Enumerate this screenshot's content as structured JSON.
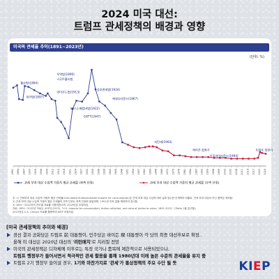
{
  "page": {
    "title_line1": "2024 미국 대선:",
    "title_line2": "트럼프 관세정책의 배경과 영향"
  },
  "chart_data": {
    "type": "line",
    "title": "미국의 관세율 추이(1891~2023년)",
    "unit": "(단위: %)",
    "ylim": [
      0,
      65
    ],
    "years": [
      1891,
      1894,
      1897,
      1900,
      1903,
      1906,
      1909,
      1912,
      1915,
      1918,
      1921,
      1924,
      1927,
      1930,
      1933,
      1936,
      1939,
      1942,
      1945,
      1948,
      1951,
      1954,
      1957,
      1960,
      1963,
      1966,
      1969,
      1972,
      1975,
      1978,
      1981,
      1984,
      1987,
      1990,
      1993,
      1996,
      1999,
      2002,
      2005,
      2008,
      2011,
      2014,
      2017,
      2020,
      2023
    ],
    "series": [
      {
        "name": "관세 부과 대상 수입액 가중치 평균 관세율 (좌측 단위)",
        "color": "#2f3f8f",
        "marker": "square",
        "x": [
          1891,
          1893,
          1894,
          1896,
          1897,
          1899,
          1902,
          1905,
          1908,
          1909,
          1911,
          1913,
          1914,
          1916,
          1918,
          1920,
          1922,
          1924,
          1927,
          1930,
          1932,
          1934,
          1936,
          1939,
          1942,
          1945,
          1948,
          1951,
          1954,
          1957,
          1960,
          1962,
          1964,
          1966,
          1969,
          1972,
          1975,
          1978,
          1981,
          1984,
          1987,
          1990,
          1993,
          1996,
          1999,
          2002,
          2005,
          2008,
          2011,
          2014,
          2017,
          2019,
          2020,
          2021,
          2023
        ],
        "y": [
          48.0,
          49.5,
          41.0,
          40.5,
          49.0,
          48.5,
          46.5,
          44.5,
          43.0,
          44.5,
          41.0,
          40.0,
          29.5,
          27.0,
          23.0,
          17.0,
          35.0,
          40.0,
          39.5,
          44.5,
          59.0,
          47.0,
          39.5,
          37.0,
          32.5,
          28.5,
          14.5,
          13.0,
          11.5,
          11.0,
          11.5,
          12.0,
          12.0,
          11.5,
          9.5,
          9.0,
          6.5,
          6.5,
          6.0,
          5.5,
          5.5,
          5.5,
          5.5,
          5.0,
          5.0,
          5.0,
          4.5,
          4.5,
          4.5,
          4.5,
          4.5,
          5.0,
          8.5,
          8.0,
          7.5
        ]
      },
      {
        "name": "관세 부과 대상 수입액 가중치 평균 관세율 (우측 단위)",
        "color": "#e0142b",
        "marker": "circle",
        "x": [
          1951,
          1954,
          1957,
          1960,
          1962,
          1964,
          1966,
          1969,
          1972,
          1975,
          1978,
          1981,
          1984,
          1987,
          1990,
          1993,
          1996,
          1999,
          2002,
          2005,
          2008,
          2011,
          2014,
          2017,
          2019,
          2020,
          2021,
          2023
        ],
        "y": [
          13.0,
          11.5,
          11.0,
          11.5,
          12.0,
          12.0,
          11.5,
          9.5,
          9.0,
          6.5,
          6.5,
          6.0,
          5.5,
          5.5,
          5.5,
          5.5,
          5.0,
          5.0,
          5.0,
          4.5,
          4.5,
          4.5,
          4.5,
          4.5,
          5.0,
          8.5,
          8.0,
          7.5
        ]
      }
    ],
    "annotations": [
      {
        "label": "월슨법(1894)",
        "x": 1894,
        "y": 49.5
      },
      {
        "label": "딩리법(1897)",
        "x": 1897,
        "y": 41.0
      },
      {
        "label": "우역법(1890)",
        "x": 1913,
        "y": 55.0
      },
      {
        "label": "스무트홀리법",
        "x": 1913,
        "y": 52.0
      },
      {
        "label": "언더우드법(1913)",
        "x": 1913,
        "y": 44.0
      },
      {
        "label": "포드니-매컴버법(1922)",
        "x": 1920,
        "y": 34.0
      },
      {
        "label": "GATT(1947)",
        "x": 1927,
        "y": 29.0
      },
      {
        "label": "상호관세법(1934)",
        "x": 1934,
        "y": 45.5
      },
      {
        "label": "케네디라운드(1967)",
        "x": 1942,
        "y": 40.0
      },
      {
        "label": "지킨세(1964)",
        "x": 1964,
        "y": 13.5
      },
      {
        "label": "레이건 집권기",
        "x": 1984,
        "y": 8.5
      },
      {
        "label": "우루과이라운드(1994)",
        "x": 1993,
        "y": 5.0
      },
      {
        "label": "트럼프 집권기",
        "x": 2017,
        "y": 8.5
      }
    ],
    "legend_position": "bottom"
  },
  "notes": {
    "lines": [
      "주: 1) 관세부과 대상 수입액 가중치 평균 관세율(Calculated duties/dutiable imports for consumption)은 관세 부과 대상 수입액 대비 실제 징수한 관세액의 비율로, 관세 부과 대상이 아닌 품목은 제외됨.",
      "2) 관세 부과 대상 수입액 가중치 평균 관세율의 우측 단위는 좌측 단위와 동일하며, 1951년 이후 값을 확대하여 표시함.",
      "3) 1891~2022년의 연도별 자료를 사용하였으며, 2023년은 추정치임.",
      "자료: 1891~2022년 자료는 USITC(2023), \"U.S. imports for consumption, duties collected, and ratio of duties to value, 1891-2022.\" (Table 1을 참고함).",
      "2023년은 U.S. Census 자료를 활용하여 KIEP 추정치임."
    ]
  },
  "summary": {
    "heading": "[미국 관세정책의 추이와 배경]",
    "b1_a": "경선 결과 공화당은 트럼프 前 대통령이, 민주당은 바이든 現 대통령이 각 당의  최종 대선후보로 확정..",
    "b1_b": "올해 미 대선은 2020년 대선의 ",
    "b1_c": "'리턴매치'",
    "b1_d": "로 치러질 전망",
    "b2_a": "미국의 관세정책은 디자체에 이후로는 특정 국가나 품목에 제한적으로 사용되었으나,",
    "b2_b": "트럼프 행정부가 들어서면서 적극적인 관세 활용을 통해 1980년대 이래 높은 수준의 관세율을 유지 중",
    "b3_a": "트럼프 2기 행정부 들어설 경우, ",
    "b3_b": "1기와 마찬가지로 '관세'가 통상정책의 주요 수단 될 듯"
  },
  "logo": {
    "text_main": "KI",
    "text_e": "E",
    "text_p": "P"
  }
}
